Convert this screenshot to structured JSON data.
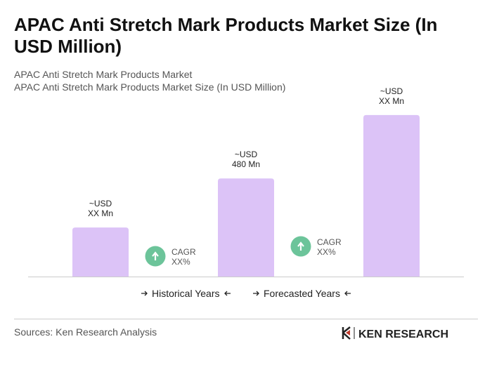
{
  "chart_data": {
    "type": "bar",
    "title": [
      "APAC Anti Stretch Mark Products Market Size (In",
      "USD Million)"
    ],
    "subtitle": [
      "APAC Anti Stretch Mark Products Market",
      "APAC Anti Stretch Mark Products Market Size (In USD Million)"
    ],
    "values": [
      240,
      480,
      790
    ],
    "value_labels": [
      [
        "~USD",
        "XX Mn"
      ],
      [
        "~USD",
        "480 Mn"
      ],
      [
        "~USD",
        "XX Mn"
      ]
    ],
    "color": "#dcc3f7",
    "ylim": [
      0,
      800
    ],
    "annotations": [
      [
        "CAGR",
        "XX%"
      ],
      [
        "CAGR",
        "XX%"
      ]
    ],
    "annotation_color": "#6cc49a",
    "legend": [
      "Historical Years",
      "Forecasted Years"
    ],
    "source": "Sources: Ken Research Analysis",
    "logo": "KEN RESEARCH"
  }
}
